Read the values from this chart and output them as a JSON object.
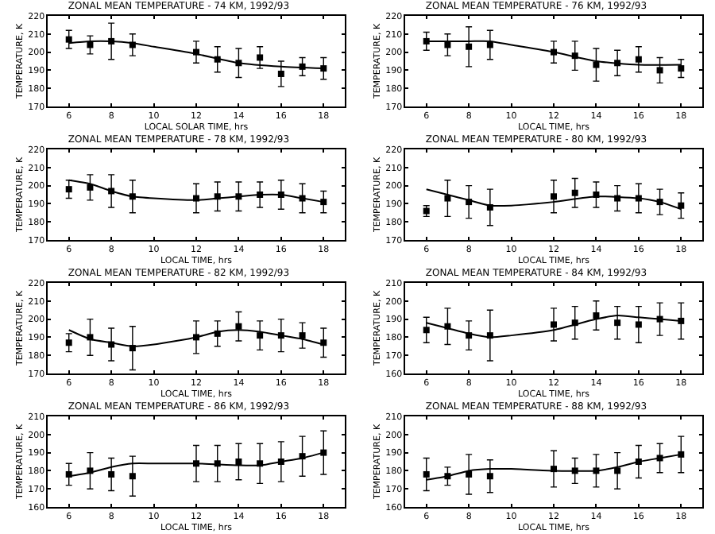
{
  "chart_data": [
    {
      "type": "scatter",
      "title": "ZONAL MEAN TEMPERATURE - 74 KM, 1992/93",
      "xlabel": "LOCAL SOLAR TIME, hrs",
      "ylabel": "TEMPERATURE, K",
      "xlim": [
        5,
        19
      ],
      "xticks": [
        6,
        8,
        10,
        12,
        14,
        16,
        18
      ],
      "ylim": [
        170,
        220
      ],
      "yticks": [
        170,
        180,
        190,
        200,
        210,
        220
      ],
      "grid": false,
      "series": [
        {
          "marker": "square",
          "color": "#000000",
          "x": [
            6,
            7,
            8,
            9,
            12,
            13,
            14,
            15,
            16,
            17,
            18
          ],
          "values": [
            207,
            204,
            206,
            204,
            200,
            196,
            194,
            197,
            188,
            192,
            191
          ],
          "errors": [
            5,
            5,
            10,
            6,
            6,
            7,
            8,
            6,
            7,
            5,
            6
          ]
        },
        {
          "type": "line",
          "marker": "none",
          "color": "#000000",
          "x": [
            6,
            7,
            8,
            9,
            10,
            12,
            14,
            16,
            18
          ],
          "values": [
            205,
            206,
            206,
            205,
            203,
            199,
            194,
            192,
            191
          ]
        }
      ]
    },
    {
      "type": "scatter",
      "title": "ZONAL MEAN TEMPERATURE - 76 KM, 1992/93",
      "xlabel": "LOCAL TIME, hrs",
      "ylabel": "TEMPERATURE, K",
      "xlim": [
        5,
        19
      ],
      "xticks": [
        6,
        8,
        10,
        12,
        14,
        16,
        18
      ],
      "ylim": [
        170,
        220
      ],
      "yticks": [
        170,
        180,
        190,
        200,
        210,
        220
      ],
      "grid": false,
      "series": [
        {
          "marker": "square",
          "color": "#000000",
          "x": [
            6,
            7,
            8,
            9,
            12,
            13,
            14,
            15,
            16,
            17,
            18
          ],
          "values": [
            206,
            204,
            203,
            204,
            200,
            198,
            193,
            194,
            196,
            190,
            191
          ],
          "errors": [
            5,
            6,
            11,
            8,
            6,
            8,
            9,
            7,
            7,
            7,
            5
          ]
        },
        {
          "type": "line",
          "marker": "none",
          "color": "#000000",
          "x": [
            6,
            8,
            9,
            10,
            12,
            14,
            16,
            18
          ],
          "values": [
            206,
            206,
            206,
            204,
            200,
            195,
            193,
            193
          ]
        }
      ]
    },
    {
      "type": "scatter",
      "title": "ZONAL MEAN TEMPERATURE - 78 KM, 1992/93",
      "xlabel": "LOCAL TIME, hrs",
      "ylabel": "TEMPERATURE, K",
      "xlim": [
        5,
        19
      ],
      "xticks": [
        6,
        8,
        10,
        12,
        14,
        16,
        18
      ],
      "ylim": [
        170,
        220
      ],
      "yticks": [
        170,
        180,
        190,
        200,
        210,
        220
      ],
      "grid": false,
      "series": [
        {
          "marker": "square",
          "color": "#000000",
          "x": [
            6,
            7,
            8,
            9,
            12,
            13,
            14,
            15,
            16,
            17,
            18
          ],
          "values": [
            198,
            199,
            197,
            194,
            193,
            194,
            194,
            195,
            195,
            193,
            191
          ],
          "errors": [
            5,
            7,
            9,
            9,
            8,
            8,
            8,
            7,
            8,
            8,
            6
          ]
        },
        {
          "type": "line",
          "marker": "none",
          "color": "#000000",
          "x": [
            6,
            7,
            8,
            9,
            10,
            12,
            13,
            14,
            15,
            16,
            17,
            18
          ],
          "values": [
            203,
            201,
            197,
            194,
            193,
            192,
            193,
            194,
            195,
            195,
            193,
            191
          ]
        }
      ]
    },
    {
      "type": "scatter",
      "title": "ZONAL MEAN TEMPERATURE - 80 KM, 1992/93",
      "xlabel": "LOCAL TIME, hrs",
      "ylabel": "TEMPERATURE, K",
      "xlim": [
        5,
        19
      ],
      "xticks": [
        6,
        8,
        10,
        12,
        14,
        16,
        18
      ],
      "ylim": [
        170,
        220
      ],
      "yticks": [
        170,
        180,
        190,
        200,
        210,
        220
      ],
      "grid": false,
      "series": [
        {
          "marker": "square",
          "color": "#000000",
          "x": [
            6,
            7,
            8,
            9,
            12,
            13,
            14,
            15,
            16,
            17,
            18
          ],
          "values": [
            186,
            193,
            191,
            188,
            194,
            196,
            195,
            193,
            193,
            191,
            189
          ],
          "errors": [
            3,
            10,
            9,
            10,
            9,
            8,
            7,
            7,
            8,
            7,
            7
          ]
        },
        {
          "type": "line",
          "marker": "none",
          "color": "#000000",
          "x": [
            6,
            7,
            8,
            9,
            10,
            12,
            14,
            16,
            17,
            18
          ],
          "values": [
            198,
            195,
            192,
            189,
            189,
            191,
            194,
            193,
            191,
            187
          ]
        }
      ]
    },
    {
      "type": "scatter",
      "title": "ZONAL MEAN TEMPERATURE - 82 KM, 1992/93",
      "xlabel": "LOCAL TIME, hrs",
      "ylabel": "TEMPERATURE, K",
      "xlim": [
        5,
        19
      ],
      "xticks": [
        6,
        8,
        10,
        12,
        14,
        16,
        18
      ],
      "ylim": [
        170,
        220
      ],
      "yticks": [
        170,
        180,
        190,
        200,
        210,
        220
      ],
      "grid": false,
      "series": [
        {
          "marker": "square",
          "color": "#000000",
          "x": [
            6,
            7,
            8,
            9,
            12,
            13,
            14,
            15,
            16,
            17,
            18
          ],
          "values": [
            187,
            190,
            186,
            184,
            190,
            192,
            196,
            191,
            191,
            191,
            187
          ],
          "errors": [
            5,
            10,
            9,
            12,
            9,
            7,
            8,
            8,
            9,
            7,
            8
          ]
        },
        {
          "type": "line",
          "marker": "none",
          "color": "#000000",
          "x": [
            6,
            7,
            8,
            9,
            10,
            12,
            13,
            14,
            15,
            16,
            17,
            18
          ],
          "values": [
            194,
            189,
            187,
            185,
            186,
            190,
            193,
            194,
            193,
            191,
            189,
            186
          ]
        }
      ]
    },
    {
      "type": "scatter",
      "title": "ZONAL MEAN TEMPERATURE - 84 KM, 1992/93",
      "xlabel": "LOCAL TIME, hrs",
      "ylabel": "TEMPERATURE, K",
      "xlim": [
        5,
        19
      ],
      "xticks": [
        6,
        8,
        10,
        12,
        14,
        16,
        18
      ],
      "ylim": [
        160,
        210
      ],
      "yticks": [
        160,
        170,
        180,
        190,
        200,
        210
      ],
      "grid": false,
      "series": [
        {
          "marker": "square",
          "color": "#000000",
          "x": [
            6,
            7,
            8,
            9,
            12,
            13,
            14,
            15,
            16,
            17,
            18
          ],
          "values": [
            184,
            186,
            181,
            181,
            187,
            188,
            192,
            188,
            187,
            190,
            189
          ],
          "errors": [
            7,
            10,
            8,
            14,
            9,
            9,
            8,
            9,
            10,
            9,
            10
          ]
        },
        {
          "type": "line",
          "marker": "none",
          "color": "#000000",
          "x": [
            6,
            7,
            8,
            9,
            10,
            12,
            14,
            15,
            16,
            17,
            18
          ],
          "values": [
            188,
            185,
            182,
            180,
            181,
            184,
            190,
            192,
            191,
            190,
            189
          ]
        }
      ]
    },
    {
      "type": "scatter",
      "title": "ZONAL MEAN TEMPERATURE - 86 KM, 1992/93",
      "xlabel": "LOCAL TIME, hrs",
      "ylabel": "TEMPERATURE, K",
      "xlim": [
        5,
        19
      ],
      "xticks": [
        6,
        8,
        10,
        12,
        14,
        16,
        18
      ],
      "ylim": [
        160,
        210
      ],
      "yticks": [
        160,
        170,
        180,
        190,
        200,
        210
      ],
      "grid": false,
      "series": [
        {
          "marker": "square",
          "color": "#000000",
          "x": [
            6,
            7,
            8,
            9,
            12,
            13,
            14,
            15,
            16,
            17,
            18
          ],
          "values": [
            178,
            180,
            178,
            177,
            184,
            184,
            185,
            184,
            185,
            188,
            190
          ],
          "errors": [
            6,
            10,
            9,
            11,
            10,
            10,
            10,
            11,
            11,
            11,
            12
          ]
        },
        {
          "type": "line",
          "marker": "none",
          "color": "#000000",
          "x": [
            6,
            7,
            8,
            9,
            10,
            12,
            14,
            15,
            16,
            17,
            18
          ],
          "values": [
            177,
            179,
            182,
            184,
            184,
            184,
            183,
            183,
            185,
            187,
            190
          ]
        }
      ]
    },
    {
      "type": "scatter",
      "title": "ZONAL MEAN TEMPERATURE - 88 KM, 1992/93",
      "xlabel": "LOCAL TIME, hrs",
      "ylabel": "TEMPERATURE, K",
      "xlim": [
        5,
        19
      ],
      "xticks": [
        6,
        8,
        10,
        12,
        14,
        16,
        18
      ],
      "ylim": [
        160,
        210
      ],
      "yticks": [
        160,
        170,
        180,
        190,
        200,
        210
      ],
      "grid": false,
      "series": [
        {
          "marker": "square",
          "color": "#000000",
          "x": [
            6,
            7,
            8,
            9,
            12,
            13,
            14,
            15,
            16,
            17,
            18
          ],
          "values": [
            178,
            177,
            178,
            177,
            181,
            180,
            180,
            180,
            185,
            187,
            189
          ],
          "errors": [
            9,
            5,
            11,
            9,
            10,
            7,
            9,
            10,
            9,
            8,
            10
          ]
        },
        {
          "type": "line",
          "marker": "none",
          "color": "#000000",
          "x": [
            6,
            7,
            8,
            9,
            10,
            12,
            14,
            15,
            16,
            17,
            18
          ],
          "values": [
            175,
            177,
            180,
            181,
            181,
            180,
            180,
            182,
            185,
            187,
            189
          ]
        }
      ]
    }
  ]
}
